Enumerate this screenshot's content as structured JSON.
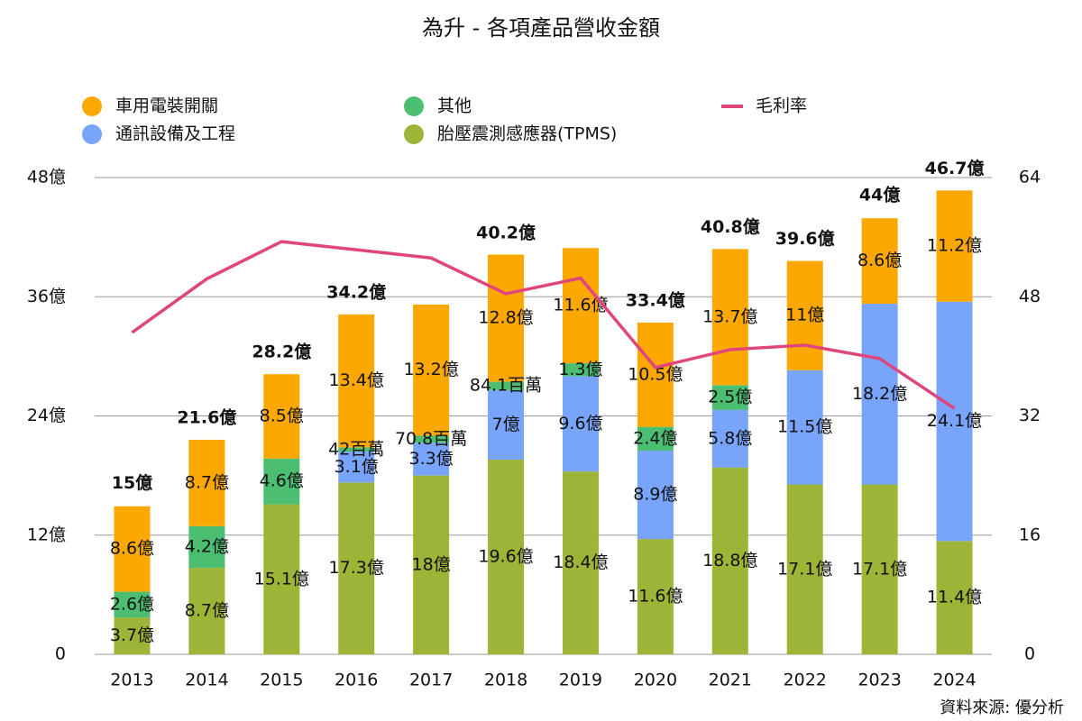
{
  "chart_data": {
    "type": "bar",
    "title": "為升 - 各項產品營收金額",
    "source": "資料來源: 優分析",
    "categories": [
      "2013",
      "2014",
      "2015",
      "2016",
      "2017",
      "2018",
      "2019",
      "2020",
      "2021",
      "2022",
      "2023",
      "2024"
    ],
    "ylim": [
      0,
      48
    ],
    "yticks": [
      0,
      {
        "value": 12,
        "label": "12億"
      },
      {
        "value": 24,
        "label": "24億"
      },
      {
        "value": 36,
        "label": "36億"
      },
      {
        "value": 48,
        "label": "48億"
      }
    ],
    "y2lim": [
      0,
      64
    ],
    "y2ticks": [
      0,
      16,
      32,
      48,
      64
    ],
    "grid": true,
    "stacked": true,
    "series": [
      {
        "name": "胎壓震測感應器(TPMS)",
        "color": "#9cb536",
        "type": "bar",
        "values": [
          3.7,
          8.7,
          15.1,
          17.3,
          18,
          19.6,
          18.4,
          11.6,
          18.8,
          17.1,
          17.1,
          11.4
        ],
        "value_labels": [
          "3.7億",
          "8.7億",
          "15.1億",
          "17.3億",
          "18億",
          "19.6億",
          "18.4億",
          "11.6億",
          "18.8億",
          "17.1億",
          "17.1億",
          "11.4億"
        ]
      },
      {
        "name": "通訊設備及工程",
        "color": "#78a4fb",
        "type": "bar",
        "values": [
          null,
          null,
          null,
          3.1,
          3.3,
          7,
          9.6,
          8.9,
          5.8,
          11.5,
          18.2,
          24.1
        ],
        "value_labels": [
          null,
          null,
          null,
          "3.1億",
          "3.3億",
          "7億",
          "9.6億",
          "8.9億",
          "5.8億",
          "11.5億",
          "18.2億",
          "24.1億"
        ]
      },
      {
        "name": "其他",
        "color": "#4cbe72",
        "type": "bar",
        "values": [
          2.6,
          4.2,
          4.6,
          0.42,
          0.708,
          0.841,
          1.3,
          2.4,
          2.5,
          null,
          null,
          null
        ],
        "value_labels": [
          "2.6億",
          "4.2億",
          "4.6億",
          "42百萬",
          "70.8百萬",
          "84.1百萬",
          "1.3億",
          "2.4億",
          "2.5億",
          null,
          null,
          null
        ]
      },
      {
        "name": "車用電裝開關",
        "color": "#fca800",
        "type": "bar",
        "values": [
          8.6,
          8.7,
          8.5,
          13.4,
          13.2,
          12.8,
          11.6,
          10.5,
          13.7,
          11,
          8.6,
          11.2
        ],
        "value_labels": [
          "8.6億",
          "8.7億",
          "8.5億",
          "13.4億",
          "13.2億",
          "12.8億",
          "11.6億",
          "10.5億",
          "13.7億",
          "11億",
          "8.6億",
          "11.2億"
        ]
      },
      {
        "name": "毛利率",
        "color": "#e0457b",
        "type": "line",
        "axis": "y2",
        "values": [
          43.2,
          50.4,
          55.4,
          54.3,
          53.2,
          48.4,
          50.5,
          38.5,
          40.9,
          41.5,
          39.7,
          33.0
        ]
      }
    ],
    "totals": {
      "values": [
        15,
        21.6,
        28.2,
        34.2,
        null,
        40.2,
        null,
        33.4,
        40.8,
        39.6,
        44,
        46.7
      ],
      "value_labels": [
        "15億",
        "21.6億",
        "28.2億",
        "34.2億",
        null,
        "40.2億",
        null,
        "33.4億",
        "40.8億",
        "39.6億",
        "44億",
        "46.7億"
      ]
    }
  }
}
